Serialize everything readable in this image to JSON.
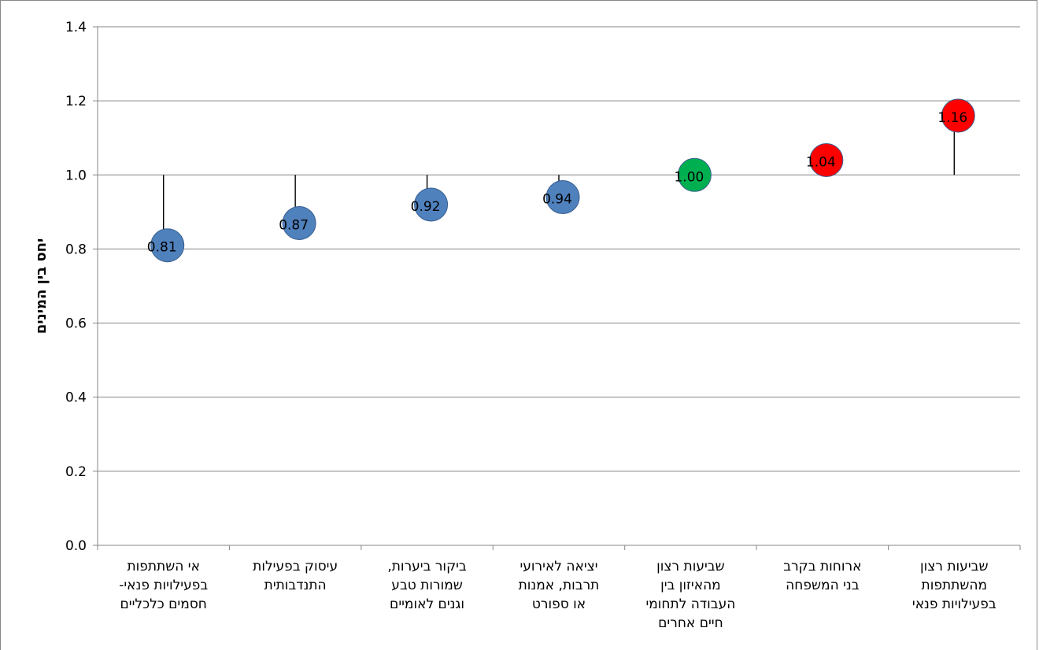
{
  "chart_data": {
    "type": "scatter",
    "title": "",
    "xlabel": "",
    "ylabel": "יחס בין המינים",
    "ylim": [
      0,
      1.4
    ],
    "yticks": [
      "0.0",
      "0.2",
      "0.4",
      "0.6",
      "0.8",
      "1.0",
      "1.2",
      "1.4"
    ],
    "baseline": 1.0,
    "grid": true,
    "legend": "none",
    "categories": [
      [
        "אי השתתפות",
        "בפעילויות פנאי-",
        "חסמים כלכליים"
      ],
      [
        "עיסוק בפעילות",
        "התנדבותית"
      ],
      [
        "ביקור ביערות,",
        "שמורות טבע",
        "וגנים לאומיים"
      ],
      [
        "יציאה לאירועי",
        "תרבות, אמנות",
        "או ספורט"
      ],
      [
        "שביעות רצון",
        "מהאיזון בין",
        "העבודה לתחומי",
        "חיים אחרים"
      ],
      [
        "ארוחות בקרב",
        "בני המשפחה"
      ],
      [
        "שביעות רצון",
        "מהשתתפות",
        "בפעילויות פנאי"
      ]
    ],
    "values": [
      0.81,
      0.87,
      0.92,
      0.94,
      1.0,
      1.04,
      1.16
    ],
    "labels": [
      "0.81",
      "0.87",
      "0.92",
      "0.94",
      "1.00",
      "1.04",
      "1.16"
    ],
    "colors": [
      "#4f81bd",
      "#4f81bd",
      "#4f81bd",
      "#4f81bd",
      "#00b050",
      "#ff0000",
      "#ff0000"
    ]
  }
}
